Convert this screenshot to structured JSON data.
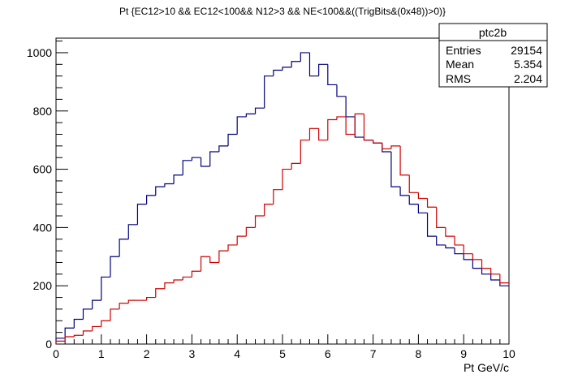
{
  "chart_data": {
    "type": "histogram",
    "title": "Pt {EC12>10 && EC12<100&& N12>3 && NE<100&&((TrigBits&(0x48))>0)}",
    "xlabel": "Pt GeV/c",
    "ylabel": "",
    "xlim": [
      0,
      10
    ],
    "ylim": [
      0,
      1050
    ],
    "x_ticks": [
      "0",
      "1",
      "2",
      "3",
      "4",
      "5",
      "6",
      "7",
      "8",
      "9",
      "10"
    ],
    "y_ticks": [
      "0",
      "200",
      "400",
      "600",
      "800",
      "1000"
    ],
    "bin_width": 0.2,
    "grid": false,
    "series": [
      {
        "color": "#000080",
        "values": [
          20,
          55,
          85,
          120,
          150,
          230,
          300,
          360,
          410,
          480,
          510,
          540,
          550,
          580,
          630,
          640,
          610,
          660,
          680,
          720,
          780,
          790,
          810,
          920,
          940,
          950,
          970,
          1000,
          920,
          960,
          890,
          850,
          780,
          710,
          700,
          690,
          660,
          540,
          510,
          480,
          450,
          370,
          340,
          330,
          310,
          290,
          260,
          240,
          220,
          200
        ]
      },
      {
        "color": "#d00000",
        "values": [
          10,
          25,
          30,
          45,
          60,
          80,
          120,
          140,
          150,
          150,
          160,
          190,
          210,
          220,
          230,
          250,
          300,
          280,
          320,
          340,
          370,
          400,
          440,
          480,
          530,
          600,
          620,
          700,
          740,
          700,
          770,
          780,
          720,
          790,
          700,
          690,
          670,
          680,
          580,
          520,
          500,
          470,
          400,
          370,
          340,
          310,
          290,
          260,
          240,
          210
        ]
      }
    ],
    "stats_box": {
      "title": "ptc2b",
      "rows": [
        {
          "label": "Entries",
          "value": "29154"
        },
        {
          "label": "Mean",
          "value": "5.354"
        },
        {
          "label": "RMS",
          "value": "2.204"
        }
      ]
    }
  }
}
